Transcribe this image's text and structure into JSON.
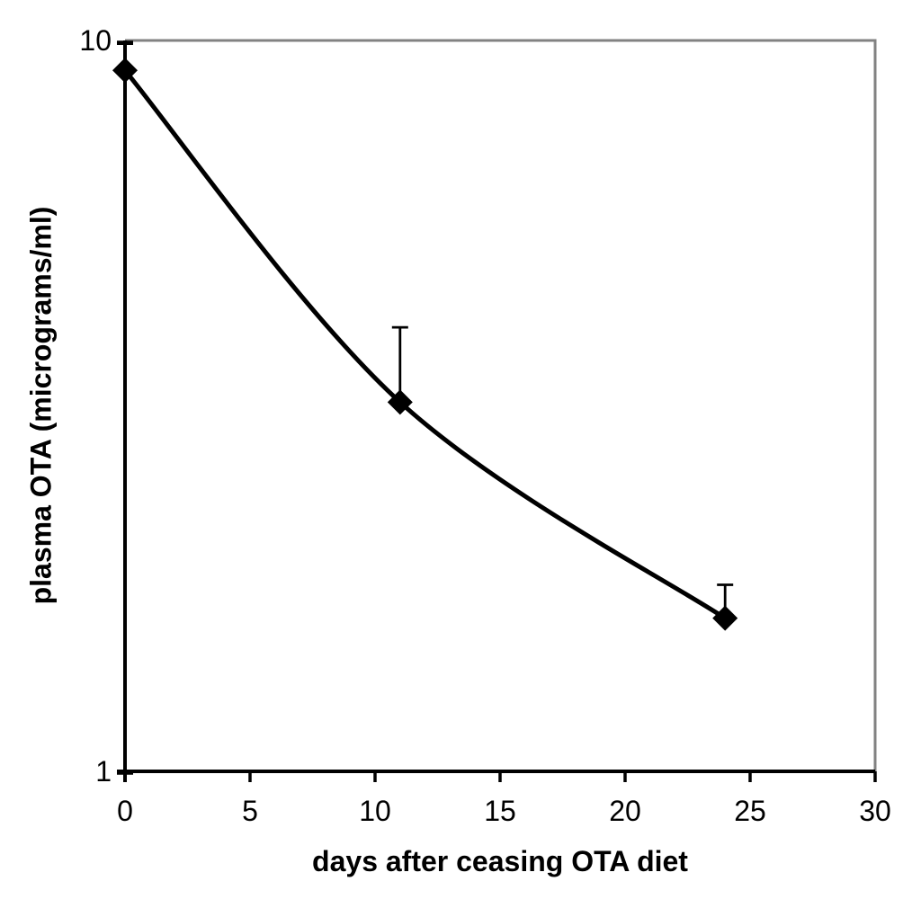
{
  "figure": {
    "background": "#ffffff",
    "border_color": "#828282",
    "axis_color": "#000000",
    "text_color": "#000000"
  },
  "chart_data": {
    "type": "line",
    "title": "",
    "xlabel": "days after ceasing OTA diet",
    "ylabel": "plasma OTA (micrograms/ml)",
    "xlim": [
      0,
      30
    ],
    "ylim": [
      1,
      10
    ],
    "y_scale": "log10",
    "x_ticks": [
      0,
      5,
      10,
      15,
      20,
      25,
      30
    ],
    "y_ticks": [
      1,
      10
    ],
    "grid": "off",
    "legend": "none",
    "series": [
      {
        "name": "plasma OTA",
        "color": "#000000",
        "marker": "diamond",
        "line_style": "smooth",
        "points": [
          {
            "x": 0,
            "y": 9.1,
            "err_up": 9.9
          },
          {
            "x": 11,
            "y": 3.2,
            "err_up": 4.05
          },
          {
            "x": 24,
            "y": 1.62,
            "err_up": 1.8
          }
        ]
      }
    ]
  }
}
